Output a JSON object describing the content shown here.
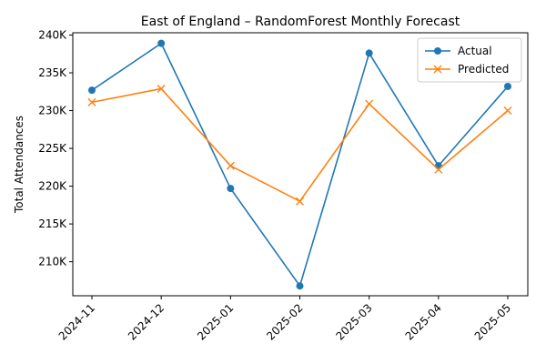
{
  "chart_data": {
    "type": "line",
    "title": "East of England – RandomForest Monthly Forecast",
    "xlabel": "",
    "ylabel": "Total Attendances",
    "x": [
      "2024-11",
      "2024-12",
      "2025-01",
      "2025-02",
      "2025-03",
      "2025-04",
      "2025-05"
    ],
    "series": [
      {
        "name": "Actual",
        "color": "#1f77b4",
        "marker": "circle",
        "values": [
          232700,
          238900,
          219700,
          206800,
          237600,
          222700,
          233200
        ]
      },
      {
        "name": "Predicted",
        "color": "#ff7f0e",
        "marker": "x",
        "values": [
          231100,
          232900,
          222700,
          218000,
          230900,
          222200,
          230000
        ]
      }
    ],
    "ylim": [
      205500,
      240300
    ],
    "yticks": [
      210000,
      215000,
      220000,
      225000,
      230000,
      235000,
      240000
    ],
    "ytick_labels": [
      "210K",
      "215K",
      "220K",
      "225K",
      "230K",
      "235K",
      "240K"
    ],
    "grid": false,
    "legend_position": "top-right"
  }
}
